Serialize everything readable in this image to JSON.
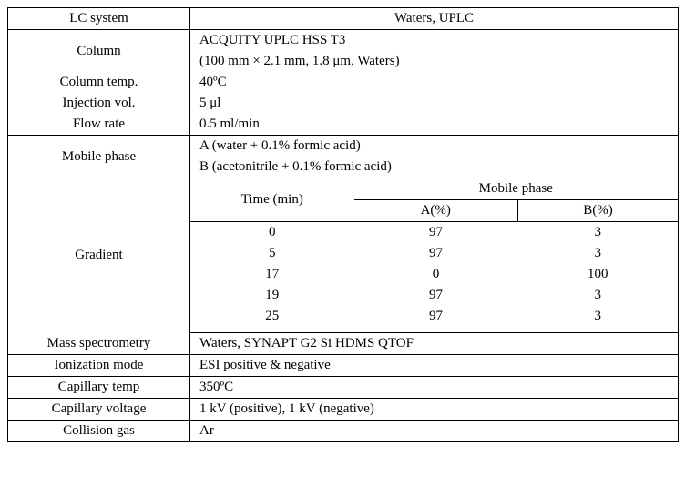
{
  "rows": {
    "lc_system": {
      "label": "LC system",
      "value": "Waters, UPLC"
    },
    "column": {
      "label": "Column",
      "line1": "ACQUITY UPLC HSS T3",
      "line2": "(100 mm × 2.1 mm, 1.8 μm, Waters)"
    },
    "column_temp": {
      "label": "Column temp.",
      "value": "40ºC"
    },
    "injection_vol": {
      "label": "Injection vol.",
      "value": "5 μl"
    },
    "flow_rate": {
      "label": "Flow rate",
      "value": "0.5 ml/min"
    },
    "mobile_phase": {
      "label": "Mobile phase",
      "A": "A (water + 0.1% formic acid)",
      "B": "B (acetonitrile + 0.1% formic acid)"
    },
    "gradient": {
      "label": "Gradient",
      "header": {
        "time": "Time (min)",
        "mp": "Mobile phase",
        "A": "A(%)",
        "B": "B(%)"
      },
      "data": [
        {
          "t": "0",
          "a": "97",
          "b": "3"
        },
        {
          "t": "5",
          "a": "97",
          "b": "3"
        },
        {
          "t": "17",
          "a": "0",
          "b": "100"
        },
        {
          "t": "19",
          "a": "97",
          "b": "3"
        },
        {
          "t": "25",
          "a": "97",
          "b": "3"
        }
      ]
    },
    "mass_spec": {
      "label": "Mass spectrometry",
      "value": "Waters, SYNAPT G2 Si HDMS QTOF"
    },
    "ion_mode": {
      "label": "Ionization mode",
      "value": "ESI positive & negative"
    },
    "cap_temp": {
      "label": "Capillary temp",
      "value": "350ºC"
    },
    "cap_volt": {
      "label": "Capillary voltage",
      "value": "1 kV (positive), 1 kV (negative)"
    },
    "coll_gas": {
      "label": "Collision gas",
      "value": "Ar"
    }
  }
}
